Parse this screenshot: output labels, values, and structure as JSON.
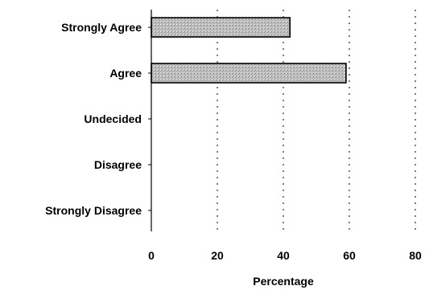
{
  "chart_data": {
    "type": "bar",
    "orientation": "horizontal",
    "categories": [
      "Strongly Agree",
      "Agree",
      "Undecided",
      "Disagree",
      "Strongly Disagree"
    ],
    "values": [
      42,
      59,
      0,
      0,
      0
    ],
    "xlabel": "Percentage",
    "ylabel": "",
    "xlim": [
      0,
      80
    ],
    "xticks": [
      0,
      20,
      40,
      60,
      80
    ],
    "grid": "vertical dashed",
    "bar_fill": "#b8b8b8",
    "bar_stroke": "#000000"
  }
}
